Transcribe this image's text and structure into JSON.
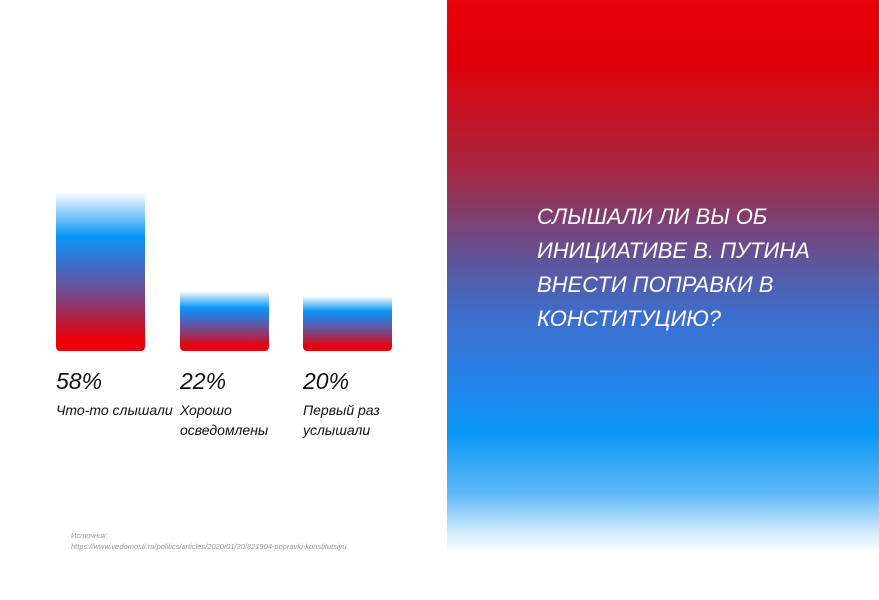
{
  "chart_data": {
    "type": "bar",
    "title": "Слышали ли вы об инициативе В. Путина внести поправки в Конституцию?",
    "categories": [
      "Что-то слышали",
      "Хорошо осведомлены",
      "Первый раз услышали"
    ],
    "values": [
      58,
      22,
      20
    ],
    "value_labels": [
      "58%",
      "22%",
      "20%"
    ],
    "unit": "%",
    "ylim": [
      0,
      58
    ],
    "grid": false
  },
  "question": "Слышали ли вы об инициативе В. Путина внести поправки в Конституцию?",
  "source": {
    "label": "Источник:",
    "url": "https://www.vedomosti.ru/politics/articles/2020/01/30/821904-popravki-konstitutsiyu"
  },
  "colors": {
    "red": "#e8000a",
    "blue": "#0a96f5"
  }
}
